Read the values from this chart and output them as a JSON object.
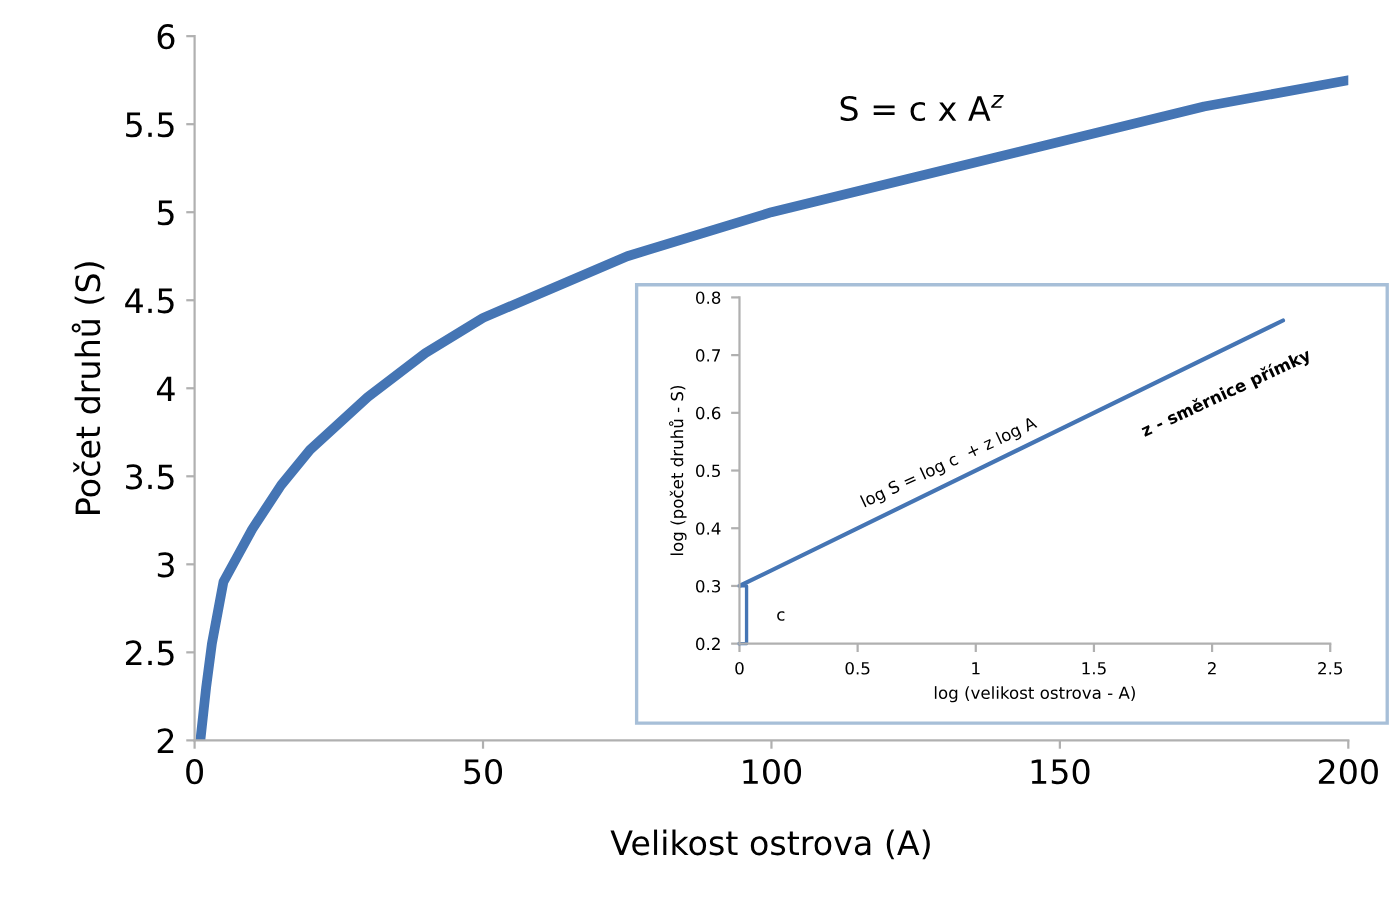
{
  "chart_data": [
    {
      "type": "line",
      "xlabel": "Velikost ostrova (A)",
      "ylabel": "Počet druhů (S)",
      "x": [
        1,
        1.5,
        2,
        3,
        5,
        7.5,
        10,
        15,
        20,
        30,
        40,
        50,
        75,
        100,
        125,
        150,
        175,
        200
      ],
      "series": [
        {
          "color": "#4575b4",
          "values": [
            2.0,
            2.15,
            2.3,
            2.55,
            2.9,
            3.05,
            3.2,
            3.45,
            3.65,
            3.95,
            4.2,
            4.4,
            4.75,
            5.0,
            5.2,
            5.4,
            5.6,
            5.75
          ]
        }
      ],
      "xlim": [
        0,
        200
      ],
      "xticks": [
        0,
        50,
        100,
        150,
        200
      ],
      "ylim": [
        2,
        6
      ],
      "yticks": [
        2,
        2.5,
        3,
        3.5,
        4,
        4.5,
        5,
        5.5,
        6
      ],
      "annotations": [
        "S = c x A$^{z}$"
      ],
      "grid": false
    },
    {
      "type": "line",
      "xlabel": "log (velikost ostrova - A)",
      "ylabel": "log (počet druhů - S)",
      "x": [
        0,
        2.3
      ],
      "series": [
        {
          "color": "#4575b4",
          "values": [
            0.3,
            0.76
          ]
        }
      ],
      "xlim": [
        0,
        2.5
      ],
      "xticks": [
        0,
        0.5,
        1,
        1.5,
        2,
        2.5
      ],
      "ylim": [
        0.2,
        0.8
      ],
      "yticks": [
        0.2,
        0.3,
        0.4,
        0.5,
        0.6,
        0.7,
        0.8
      ],
      "annotations": [
        "log S = log c  + z log A",
        "z - směrnice přímky",
        "c"
      ],
      "grid": false
    }
  ]
}
